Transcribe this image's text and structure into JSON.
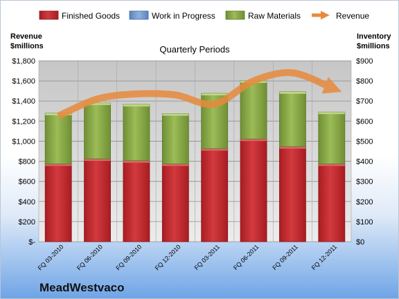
{
  "chart_data": {
    "type": "bar",
    "stacked": true,
    "title": "Quarterly Periods",
    "company": "MeadWestvaco",
    "categories": [
      "FQ 03-2010",
      "FQ 06-2010",
      "FQ 09-2010",
      "FQ 12-2010",
      "FQ 03-2011",
      "FQ 06-2011",
      "FQ 09-2011",
      "FQ 12-2011"
    ],
    "left_axis": {
      "label_line1": "Revenue",
      "label_line2": "$millions",
      "ylim": [
        0,
        1800
      ],
      "ticks": [
        0,
        200,
        400,
        600,
        800,
        1000,
        1200,
        1400,
        1600,
        1800
      ],
      "tick_labels": [
        "$-",
        "$200",
        "$400",
        "$600",
        "$800",
        "$1,000",
        "$1,200",
        "$1,400",
        "$1,600",
        "$1,800"
      ]
    },
    "right_axis": {
      "label_line1": "Inventory",
      "label_line2": "$millions",
      "ylim": [
        0,
        900
      ],
      "ticks": [
        0,
        100,
        200,
        300,
        400,
        500,
        600,
        700,
        800,
        900
      ],
      "tick_labels": [
        "$0",
        "$100",
        "$200",
        "$300",
        "$400",
        "$500",
        "$600",
        "$700",
        "$800",
        "$900"
      ]
    },
    "series": [
      {
        "name": "Finished Goods",
        "axis": "right",
        "kind": "bar",
        "color": "#c0262b",
        "values": [
          387,
          412,
          403,
          387,
          463,
          511,
          473,
          387
        ]
      },
      {
        "name": "Work in Progress",
        "axis": "right",
        "kind": "bar",
        "color": "#6f96cc",
        "values": [
          0,
          0,
          0,
          0,
          0,
          0,
          0,
          0
        ]
      },
      {
        "name": "Raw Materials",
        "axis": "right",
        "kind": "bar",
        "color": "#8fb04a",
        "values": [
          252,
          278,
          280,
          250,
          275,
          289,
          273,
          258
        ]
      },
      {
        "name": "Revenue",
        "axis": "left",
        "kind": "line",
        "color": "#e88a3c",
        "values": [
          1250,
          1420,
          1470,
          1460,
          1370,
          1600,
          1680,
          1530
        ]
      }
    ],
    "legend_position": "top",
    "grid": true
  }
}
